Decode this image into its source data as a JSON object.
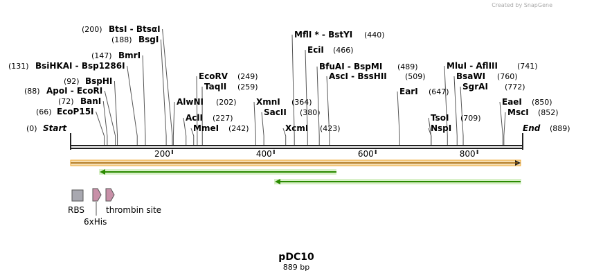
{
  "watermark": "Created by SnapGene",
  "title": "pDC10",
  "length": "889 bp",
  "ticks": [
    200,
    400,
    600,
    800
  ],
  "enzymes": [
    {
      "name": "BtsI - BtsαI",
      "site": 200,
      "site_label": "(200)"
    },
    {
      "name": "BsgI",
      "site": 188,
      "site_label": "(188)"
    },
    {
      "name": "BmrI",
      "site": 147,
      "site_label": "(147)"
    },
    {
      "name": "BsiHKAI - Bsp1286I",
      "site": 131,
      "site_label": "(131)"
    },
    {
      "name": "BspHI",
      "site": 92,
      "site_label": "(92)"
    },
    {
      "name": "ApoI - EcoRI",
      "site": 88,
      "site_label": "(88)"
    },
    {
      "name": "BanI",
      "site": 72,
      "site_label": "(72)"
    },
    {
      "name": "EcoP15I",
      "site": 66,
      "site_label": "(66)"
    },
    {
      "name": "Start",
      "site": 0,
      "site_label": "(0)"
    },
    {
      "name": "EcoRV",
      "site": 249,
      "site_label": "(249)"
    },
    {
      "name": "TaqII",
      "site": 259,
      "site_label": "(259)"
    },
    {
      "name": "AlwNI",
      "site": 202,
      "site_label": "(202)"
    },
    {
      "name": "AclI",
      "site": 227,
      "site_label": "(227)"
    },
    {
      "name": "MmeI",
      "site": 242,
      "site_label": "(242)"
    },
    {
      "name": "XmnI",
      "site": 364,
      "site_label": "(364)"
    },
    {
      "name": "SacII",
      "site": 380,
      "site_label": "(380)"
    },
    {
      "name": "XcmI",
      "site": 423,
      "site_label": "(423)"
    },
    {
      "name": "MflI * - BstYI",
      "site": 440,
      "site_label": "(440)"
    },
    {
      "name": "EciI",
      "site": 466,
      "site_label": "(466)"
    },
    {
      "name": "BfuAI - BspMI",
      "site": 489,
      "site_label": "(489)"
    },
    {
      "name": "AscI - BssHII",
      "site": 509,
      "site_label": "(509)"
    },
    {
      "name": "EarI",
      "site": 647,
      "site_label": "(647)"
    },
    {
      "name": "MluI - AflIII",
      "site": 741,
      "site_label": "(741)"
    },
    {
      "name": "BsaWI",
      "site": 760,
      "site_label": "(760)"
    },
    {
      "name": "SgrAI",
      "site": 772,
      "site_label": "(772)"
    },
    {
      "name": "TsoI",
      "site": 709,
      "site_label": "(709)"
    },
    {
      "name": "NspI",
      "site": 709
    },
    {
      "name": "EaeI",
      "site": 850,
      "site_label": "(850)"
    },
    {
      "name": "MscI",
      "site": 852,
      "site_label": "(852)"
    },
    {
      "name": "End",
      "site": 889,
      "site_label": "(889)"
    }
  ],
  "features": [
    "RBS",
    "6xHis",
    "thrombin site"
  ]
}
